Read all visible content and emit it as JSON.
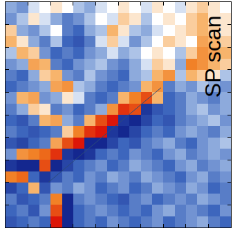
{
  "chart_data": {
    "type": "heatmap",
    "annotations": [
      {
        "text": "SP scan"
      }
    ],
    "tick_labels": false,
    "xlim": [
      0,
      20
    ],
    "ylim": [
      20,
      0
    ],
    "xticks": [
      0,
      2,
      4,
      6,
      8,
      10,
      12,
      14,
      16,
      18,
      20
    ],
    "yticks": [
      0,
      2,
      4,
      6,
      8,
      10,
      12,
      14,
      16,
      18,
      20
    ],
    "zlim": [
      -1,
      1
    ],
    "x": [
      0.5,
      1.5,
      2.5,
      3.5,
      4.5,
      5.5,
      6.5,
      7.5,
      8.5,
      9.5,
      10.5,
      11.5,
      12.5,
      13.5,
      14.5,
      15.5,
      16.5,
      17.5,
      18.5,
      19.5
    ],
    "y": [
      0.5,
      1.5,
      2.5,
      3.5,
      4.5,
      5.5,
      6.5,
      7.5,
      8.5,
      9.5,
      10.5,
      11.5,
      12.5,
      13.5,
      14.5,
      15.5,
      16.5,
      17.5,
      18.5,
      19.5
    ],
    "z": [
      [
        -0.3,
        -0.4,
        -0.1,
        0,
        0.1,
        0,
        -0.2,
        -0.3,
        -0.1,
        0,
        0.1,
        0,
        -0.1,
        0.1,
        0,
        -0.1,
        0.1,
        0.2,
        0.1,
        0
      ],
      [
        -0.4,
        -0.2,
        0.1,
        -0.1,
        -0.3,
        -0.5,
        -0.4,
        -0.2,
        0,
        -0.1,
        0.2,
        0.1,
        -0.2,
        0,
        0.1,
        0,
        0.2,
        0.3,
        0.1,
        0.1
      ],
      [
        0.2,
        -0.3,
        -0.4,
        -0.2,
        0,
        -0.5,
        -0.6,
        -0.3,
        -0.2,
        0.3,
        0.1,
        -0.2,
        -0.3,
        -0.1,
        0,
        0.1,
        0.2,
        0.3,
        0.2,
        0.1
      ],
      [
        0.3,
        0.1,
        -0.3,
        -0.5,
        -0.2,
        -0.6,
        -0.7,
        -0.5,
        -0.1,
        0.2,
        -0.1,
        -0.4,
        -0.2,
        0,
        0.2,
        0.1,
        0,
        0.4,
        0.3,
        0.2
      ],
      [
        -0.2,
        0.3,
        0.2,
        -0.4,
        -0.6,
        -0.5,
        -0.6,
        -0.4,
        -0.3,
        -0.1,
        -0.3,
        -0.2,
        0,
        0.1,
        0,
        -0.2,
        0.2,
        0.5,
        0.4,
        0.3
      ],
      [
        -0.4,
        -0.3,
        0.4,
        0.3,
        -0.5,
        -0.6,
        -0.4,
        -0.3,
        -0.2,
        -0.4,
        -0.5,
        -0.3,
        -0.1,
        0.2,
        0.1,
        -0.3,
        0.6,
        0.5,
        0.3,
        0.2
      ],
      [
        -0.5,
        -0.6,
        -0.3,
        0.2,
        0.3,
        -0.4,
        -0.5,
        -0.2,
        -0.4,
        -0.5,
        -0.6,
        -0.3,
        -0.2,
        0.3,
        0.5,
        -0.2,
        0.3,
        0.2,
        0.1,
        -0.2
      ],
      [
        -0.6,
        -0.5,
        -0.4,
        -0.3,
        0.4,
        0.5,
        -0.2,
        -0.3,
        -0.5,
        -0.6,
        -0.5,
        -0.4,
        0.3,
        0.5,
        -0.5,
        -0.3,
        -0.4,
        -0.2,
        -0.3,
        -0.4
      ],
      [
        -0.4,
        0.3,
        0.4,
        -0.4,
        -0.3,
        0.1,
        -0.1,
        -0.5,
        -0.6,
        -0.5,
        0.3,
        0.6,
        0.8,
        0.3,
        -0.6,
        -0.5,
        -0.3,
        -0.4,
        -0.5,
        -0.3
      ],
      [
        -0.5,
        -0.3,
        0.2,
        0.1,
        -0.5,
        -0.4,
        -0.6,
        -0.5,
        -0.3,
        0.5,
        0.9,
        0.8,
        -0.9,
        -0.7,
        -0.6,
        -0.5,
        -0.3,
        -0.2,
        -0.4,
        -0.3
      ],
      [
        -0.6,
        -0.7,
        -0.5,
        0.3,
        0.4,
        -0.3,
        -0.5,
        0.3,
        0.8,
        1.0,
        -0.9,
        -1.0,
        -0.8,
        -0.6,
        -0.7,
        -0.5,
        -0.4,
        -0.3,
        -0.2,
        -0.4
      ],
      [
        -0.5,
        -0.6,
        -0.7,
        -0.6,
        -0.5,
        0.2,
        0.6,
        0.9,
        1.0,
        -0.9,
        -1.0,
        -0.8,
        -0.6,
        -0.5,
        -0.6,
        -0.4,
        -0.3,
        -0.4,
        -0.5,
        -0.3
      ],
      [
        -0.7,
        -0.8,
        -0.6,
        -0.5,
        0.4,
        0.8,
        1.0,
        -1.0,
        -1.0,
        -0.8,
        -0.6,
        -0.7,
        -0.5,
        -0.4,
        -0.3,
        -0.5,
        -0.6,
        -0.4,
        -0.3,
        -0.2
      ],
      [
        -0.4,
        0.5,
        0.6,
        0.7,
        0.9,
        -0.9,
        -1.0,
        -0.9,
        -0.6,
        -0.5,
        -0.6,
        -0.4,
        -0.5,
        -0.6,
        -0.4,
        -0.3,
        -0.5,
        -0.4,
        -0.3,
        -0.4
      ],
      [
        -0.9,
        -1.0,
        -1.0,
        0.8,
        -1.0,
        -0.8,
        -0.6,
        -0.5,
        -0.4,
        -0.6,
        -0.5,
        -0.3,
        -0.4,
        -0.5,
        -0.6,
        -0.4,
        -0.3,
        -0.5,
        -0.4,
        -0.3
      ],
      [
        0.6,
        0.7,
        -0.6,
        -0.9,
        -0.7,
        -0.5,
        -0.6,
        -0.4,
        -0.5,
        -0.3,
        -0.4,
        -0.5,
        -0.3,
        -0.4,
        -0.5,
        -0.6,
        -0.4,
        -0.3,
        -0.5,
        -0.4
      ],
      [
        -0.8,
        -0.6,
        0.3,
        -0.7,
        -0.4,
        -0.5,
        -0.3,
        -0.4,
        -0.6,
        -0.5,
        -0.4,
        -0.6,
        -0.5,
        -0.3,
        -0.4,
        -0.5,
        -0.3,
        -0.4,
        -0.6,
        -0.5
      ],
      [
        -0.5,
        -0.7,
        -0.6,
        -0.5,
        0.6,
        -1.0,
        -0.5,
        -0.4,
        -0.5,
        -0.6,
        -0.7,
        -0.5,
        -0.4,
        -0.6,
        -0.5,
        -0.4,
        -0.5,
        -0.3,
        -0.4,
        -0.5
      ],
      [
        -0.6,
        -0.5,
        -0.7,
        -0.4,
        0.8,
        -1.0,
        -0.6,
        -0.5,
        -0.4,
        -0.5,
        -0.6,
        -0.5,
        -0.6,
        -0.4,
        -0.3,
        -0.5,
        -0.4,
        -0.5,
        -0.6,
        -0.4
      ],
      [
        -0.7,
        -0.6,
        -0.5,
        -0.6,
        1.0,
        -1.0,
        -0.6,
        -0.5,
        -0.6,
        -0.4,
        -0.5,
        -0.6,
        -0.5,
        -0.4,
        -0.6,
        -0.5,
        -0.4,
        -0.3,
        -0.5,
        -0.6
      ]
    ],
    "series": [
      {
        "type": "line",
        "x": [
          3.8,
          13.8
        ],
        "y": [
          16,
          7.6
        ],
        "color": "#2b4a7a"
      }
    ]
  }
}
